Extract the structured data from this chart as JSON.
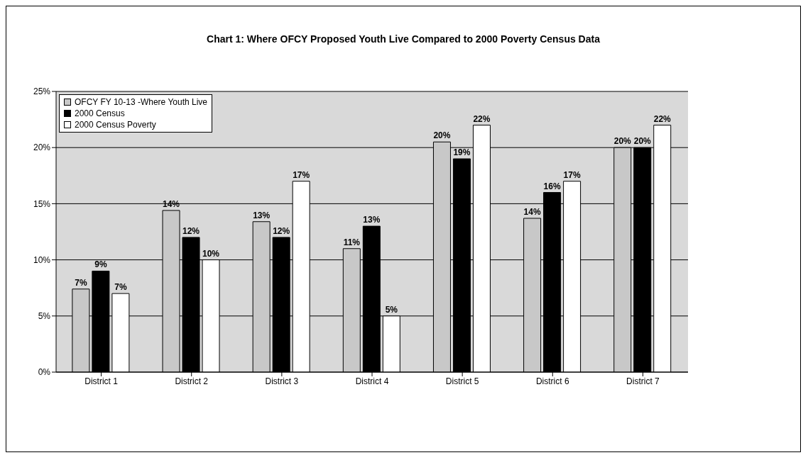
{
  "chart_data": {
    "type": "bar",
    "title": "Chart 1: Where OFCY Proposed Youth Live Compared to 2000 Poverty Census Data",
    "categories": [
      "District 1",
      "District 2",
      "District 3",
      "District 4",
      "District 5",
      "District 6",
      "District 7"
    ],
    "series": [
      {
        "name": "OFCY FY 10-13 -Where Youth Live",
        "color": "#c8c8c8",
        "values": [
          7.4,
          14.4,
          13.4,
          11,
          20.5,
          13.7,
          20
        ],
        "value_labels": [
          "7%",
          "14%",
          "13%",
          "11%",
          "20%",
          "14%",
          "20%"
        ]
      },
      {
        "name": "2000 Census",
        "color": "#000000",
        "values": [
          9,
          12,
          12,
          13,
          19,
          16,
          20
        ],
        "value_labels": [
          "9%",
          "12%",
          "12%",
          "13%",
          "19%",
          "16%",
          "20%"
        ]
      },
      {
        "name": "2000 Census Poverty",
        "color": "#ffffff",
        "values": [
          7,
          10,
          17,
          5,
          22,
          17,
          22
        ],
        "value_labels": [
          "7%",
          "10%",
          "17%",
          "5%",
          "22%",
          "17%",
          "22%"
        ]
      }
    ],
    "ylim": [
      0,
      25
    ],
    "yticks": [
      {
        "value": 0,
        "label": "0%"
      },
      {
        "value": 5,
        "label": "5%"
      },
      {
        "value": 10,
        "label": "10%"
      },
      {
        "value": 15,
        "label": "15%"
      },
      {
        "value": 20,
        "label": "20%"
      },
      {
        "value": 25,
        "label": "25%"
      }
    ],
    "grid": "y",
    "legend": "top left"
  }
}
